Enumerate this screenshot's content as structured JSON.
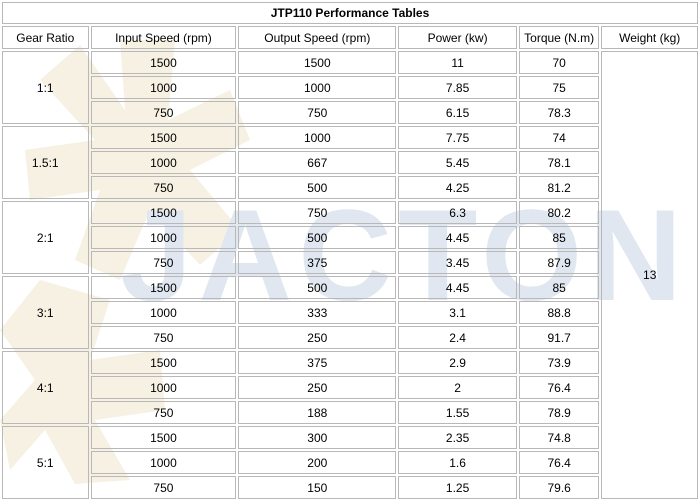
{
  "table": {
    "title": "JTP110 Performance Tables",
    "headers": [
      "Gear Ratio",
      "Input Speed (rpm)",
      "Output Speed (rpm)",
      "Power (kw)",
      "Torque (N.m)",
      "Weight (kg)"
    ],
    "weight": "13",
    "groups": [
      {
        "ratio": "1:1",
        "rows": [
          {
            "input": "1500",
            "output": "1500",
            "power": "11",
            "torque": "70"
          },
          {
            "input": "1000",
            "output": "1000",
            "power": "7.85",
            "torque": "75"
          },
          {
            "input": "750",
            "output": "750",
            "power": "6.15",
            "torque": "78.3"
          }
        ]
      },
      {
        "ratio": "1.5:1",
        "rows": [
          {
            "input": "1500",
            "output": "1000",
            "power": "7.75",
            "torque": "74"
          },
          {
            "input": "1000",
            "output": "667",
            "power": "5.45",
            "torque": "78.1"
          },
          {
            "input": "750",
            "output": "500",
            "power": "4.25",
            "torque": "81.2"
          }
        ]
      },
      {
        "ratio": "2:1",
        "rows": [
          {
            "input": "1500",
            "output": "750",
            "power": "6.3",
            "torque": "80.2"
          },
          {
            "input": "1000",
            "output": "500",
            "power": "4.45",
            "torque": "85"
          },
          {
            "input": "750",
            "output": "375",
            "power": "3.45",
            "torque": "87.9"
          }
        ]
      },
      {
        "ratio": "3:1",
        "rows": [
          {
            "input": "1500",
            "output": "500",
            "power": "4.45",
            "torque": "85"
          },
          {
            "input": "1000",
            "output": "333",
            "power": "3.1",
            "torque": "88.8"
          },
          {
            "input": "750",
            "output": "250",
            "power": "2.4",
            "torque": "91.7"
          }
        ]
      },
      {
        "ratio": "4:1",
        "rows": [
          {
            "input": "1500",
            "output": "375",
            "power": "2.9",
            "torque": "73.9"
          },
          {
            "input": "1000",
            "output": "250",
            "power": "2",
            "torque": "76.4"
          },
          {
            "input": "750",
            "output": "188",
            "power": "1.55",
            "torque": "78.9"
          }
        ]
      },
      {
        "ratio": "5:1",
        "rows": [
          {
            "input": "1500",
            "output": "300",
            "power": "2.35",
            "torque": "74.8"
          },
          {
            "input": "1000",
            "output": "200",
            "power": "1.6",
            "torque": "76.4"
          },
          {
            "input": "750",
            "output": "150",
            "power": "1.25",
            "torque": "79.6"
          }
        ]
      }
    ]
  },
  "watermark": {
    "text": "JACTON",
    "text_color": "#dfe6f0",
    "logo_color": "#f3ecd6"
  }
}
